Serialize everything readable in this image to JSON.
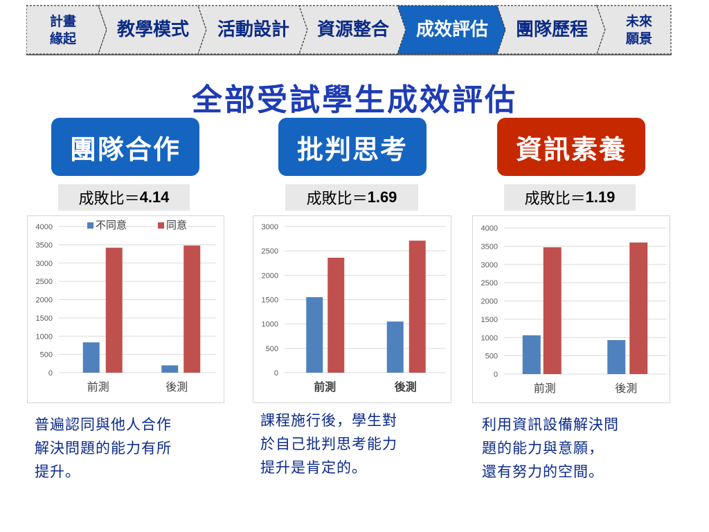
{
  "nav": {
    "tabs": [
      {
        "label": "計畫\n緣起",
        "active": false
      },
      {
        "label": "教學模式",
        "active": false
      },
      {
        "label": "活動設計",
        "active": false
      },
      {
        "label": "資源整合",
        "active": false
      },
      {
        "label": "成效評估",
        "active": true
      },
      {
        "label": "團隊歷程",
        "active": false
      },
      {
        "label": "未來\n願景",
        "active": false
      }
    ]
  },
  "page": {
    "title": "全部受試學生成效評估"
  },
  "sections": [
    {
      "badge": "團隊合作",
      "badge_color": "#1565c0",
      "ratio_prefix": "成敗比＝",
      "ratio_value": "4.14",
      "description": "普遍認同與他人合作\n解決問題的能力有所\n提升。"
    },
    {
      "badge": "批判思考",
      "badge_color": "#1565c0",
      "ratio_prefix": "成敗比＝",
      "ratio_value": "1.69",
      "description": "課程施行後，學生對\n於自己批判思考能力\n提升是肯定的。"
    },
    {
      "badge": "資訊素養",
      "badge_color": "#c62800",
      "ratio_prefix": "成敗比＝",
      "ratio_value": "1.19",
      "description": "利用資訊設備解決問\n題的能力與意願，\n還有努力的空間。"
    }
  ],
  "colors": {
    "disagree": "#4f81bd",
    "agree": "#c0504d",
    "nav_active": "#1565c0",
    "nav_bg": "#e6e6e6"
  },
  "chart_data": [
    {
      "type": "bar",
      "categories": [
        "前測",
        "後測"
      ],
      "series": [
        {
          "name": "不同意",
          "values": [
            830,
            200
          ]
        },
        {
          "name": "同意",
          "values": [
            3420,
            3480
          ]
        }
      ],
      "ylim": [
        0,
        4000
      ],
      "yticks": [
        0,
        500,
        1000,
        1500,
        2000,
        2500,
        3000,
        3500,
        4000
      ],
      "legend": "top",
      "grid": true,
      "category_label_bold": false
    },
    {
      "type": "bar",
      "categories": [
        "前測",
        "後測"
      ],
      "series": [
        {
          "values": [
            1550,
            1050
          ]
        },
        {
          "values": [
            2360,
            2710
          ]
        }
      ],
      "ylim": [
        0,
        3000
      ],
      "yticks": [
        0,
        500,
        1000,
        1500,
        2000,
        2500,
        3000
      ],
      "legend": "none",
      "grid": true,
      "category_label_bold": true
    },
    {
      "type": "bar",
      "categories": [
        "前測",
        "後測"
      ],
      "series": [
        {
          "values": [
            1060,
            930
          ]
        },
        {
          "values": [
            3470,
            3600
          ]
        }
      ],
      "ylim": [
        0,
        4000
      ],
      "yticks": [
        0,
        500,
        1000,
        1500,
        2000,
        2500,
        3000,
        3500,
        4000
      ],
      "legend": "none",
      "grid": true,
      "category_label_bold": false
    }
  ]
}
